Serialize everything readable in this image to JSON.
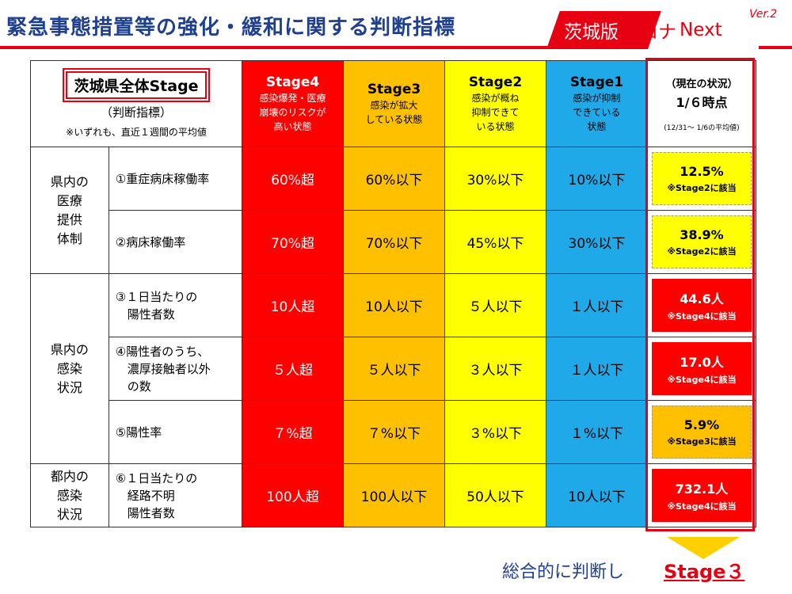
{
  "header": {
    "title": "緊急事態措置等の強化・緩和に関する判断指標",
    "brand": {
      "part1": "茨城版",
      "part2": "コロナ",
      "part3": "Next",
      "version": "Ver.2"
    }
  },
  "table": {
    "top_left": {
      "title": "茨城県全体Stage",
      "subtitle": "（判断指標）",
      "note": "※いずれも、直近１週間の平均値"
    },
    "stages": [
      {
        "name": "Stage4",
        "desc_lines": [
          "感染爆発・医療",
          "崩壊のリスクが",
          "高い状態"
        ],
        "color": "#ff0000"
      },
      {
        "name": "Stage3",
        "desc_lines": [
          "感染が拡大",
          "している状態"
        ],
        "color": "#ffc000"
      },
      {
        "name": "Stage2",
        "desc_lines": [
          "感染が概ね",
          "抑制できて",
          "いる状態"
        ],
        "color": "#ffff00"
      },
      {
        "name": "Stage1",
        "desc_lines": [
          "感染が抑制",
          "できている",
          "状態"
        ],
        "color": "#1fa9e8"
      }
    ],
    "current_header": {
      "line1": "（現在の状況）",
      "line2": "1/６時点",
      "line3": "(12/31～ 1/6の平均値)"
    },
    "categories": [
      {
        "lines": [
          "県内の",
          "医療",
          "提供",
          "体制"
        ]
      },
      {
        "lines": [
          "県内の",
          "感染",
          "状況"
        ]
      },
      {
        "lines": [
          "都内の",
          "感染",
          "状況"
        ]
      }
    ],
    "rows": [
      {
        "indicator_lines": [
          "①重症病床稼働率"
        ],
        "values": [
          "60%超",
          "60%以下",
          "30%以下",
          "10%以下"
        ],
        "current": "12.5%",
        "current_note": "※Stage2に該当"
      },
      {
        "indicator_lines": [
          "②病床稼働率"
        ],
        "values": [
          "70%超",
          "70%以下",
          "45%以下",
          "30%以下"
        ],
        "current": "38.9%",
        "current_note": "※Stage2に該当"
      },
      {
        "indicator_lines": [
          "③１日当たりの",
          "　陽性者数"
        ],
        "values": [
          "10人超",
          "10人以下",
          "５人以下",
          "１人以下"
        ],
        "current": "44.6人",
        "current_note": "※Stage4に該当"
      },
      {
        "indicator_lines": [
          "④陽性者のうち、",
          "　濃厚接触者以外",
          "　の数"
        ],
        "values": [
          "５人超",
          "５人以下",
          "３人以下",
          "１人以下"
        ],
        "current": "17.0人",
        "current_note": "※Stage4に該当"
      },
      {
        "indicator_lines": [
          "⑤陽性率"
        ],
        "values": [
          "７%超",
          "７%以下",
          "３%以下",
          "１%以下"
        ],
        "current": "5.9%",
        "current_note": "※Stage3に該当"
      },
      {
        "indicator_lines": [
          "⑥１日当たりの",
          "　経路不明",
          "　陽性者数"
        ],
        "values": [
          "100人超",
          "100人以下",
          "50人以下",
          "10人以下"
        ],
        "current": "732.1人",
        "current_note": "※Stage4に該当"
      }
    ]
  },
  "verdict": {
    "text": "総合的に判断し",
    "stage": "Stage３"
  },
  "colors": {
    "accent_red": "#e60012",
    "title_blue": "#1f3f8f"
  }
}
